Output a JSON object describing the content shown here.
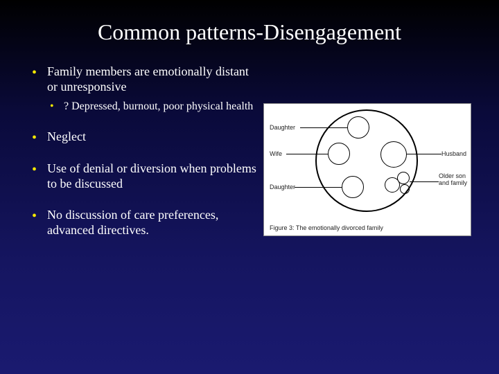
{
  "title": "Common patterns-Disengagement",
  "bullets": [
    {
      "text": "Family members are emotionally distant or unresponsive",
      "sub": [
        {
          "text": "?  Depressed, burnout, poor physical health"
        }
      ]
    },
    {
      "text": "Neglect"
    },
    {
      "text": "Use of denial or diversion when problems to be discussed"
    },
    {
      "text": "No discussion of care preferences, advanced directives."
    }
  ],
  "diagram": {
    "labels": {
      "daughter_top": "Daughter",
      "wife": "Wife",
      "daughter_bottom": "Daughter",
      "husband": "Husband",
      "older_son": "Older son and family"
    },
    "caption": "Figure 3: The emotionally divorced family",
    "colors": {
      "background": "#ffffff",
      "stroke": "#000000",
      "text": "#222222"
    }
  },
  "colors": {
    "bullet_accent": "#f5e800",
    "slide_bg_top": "#000000",
    "slide_bg_bottom": "#1a1a70",
    "text": "#ffffff"
  }
}
